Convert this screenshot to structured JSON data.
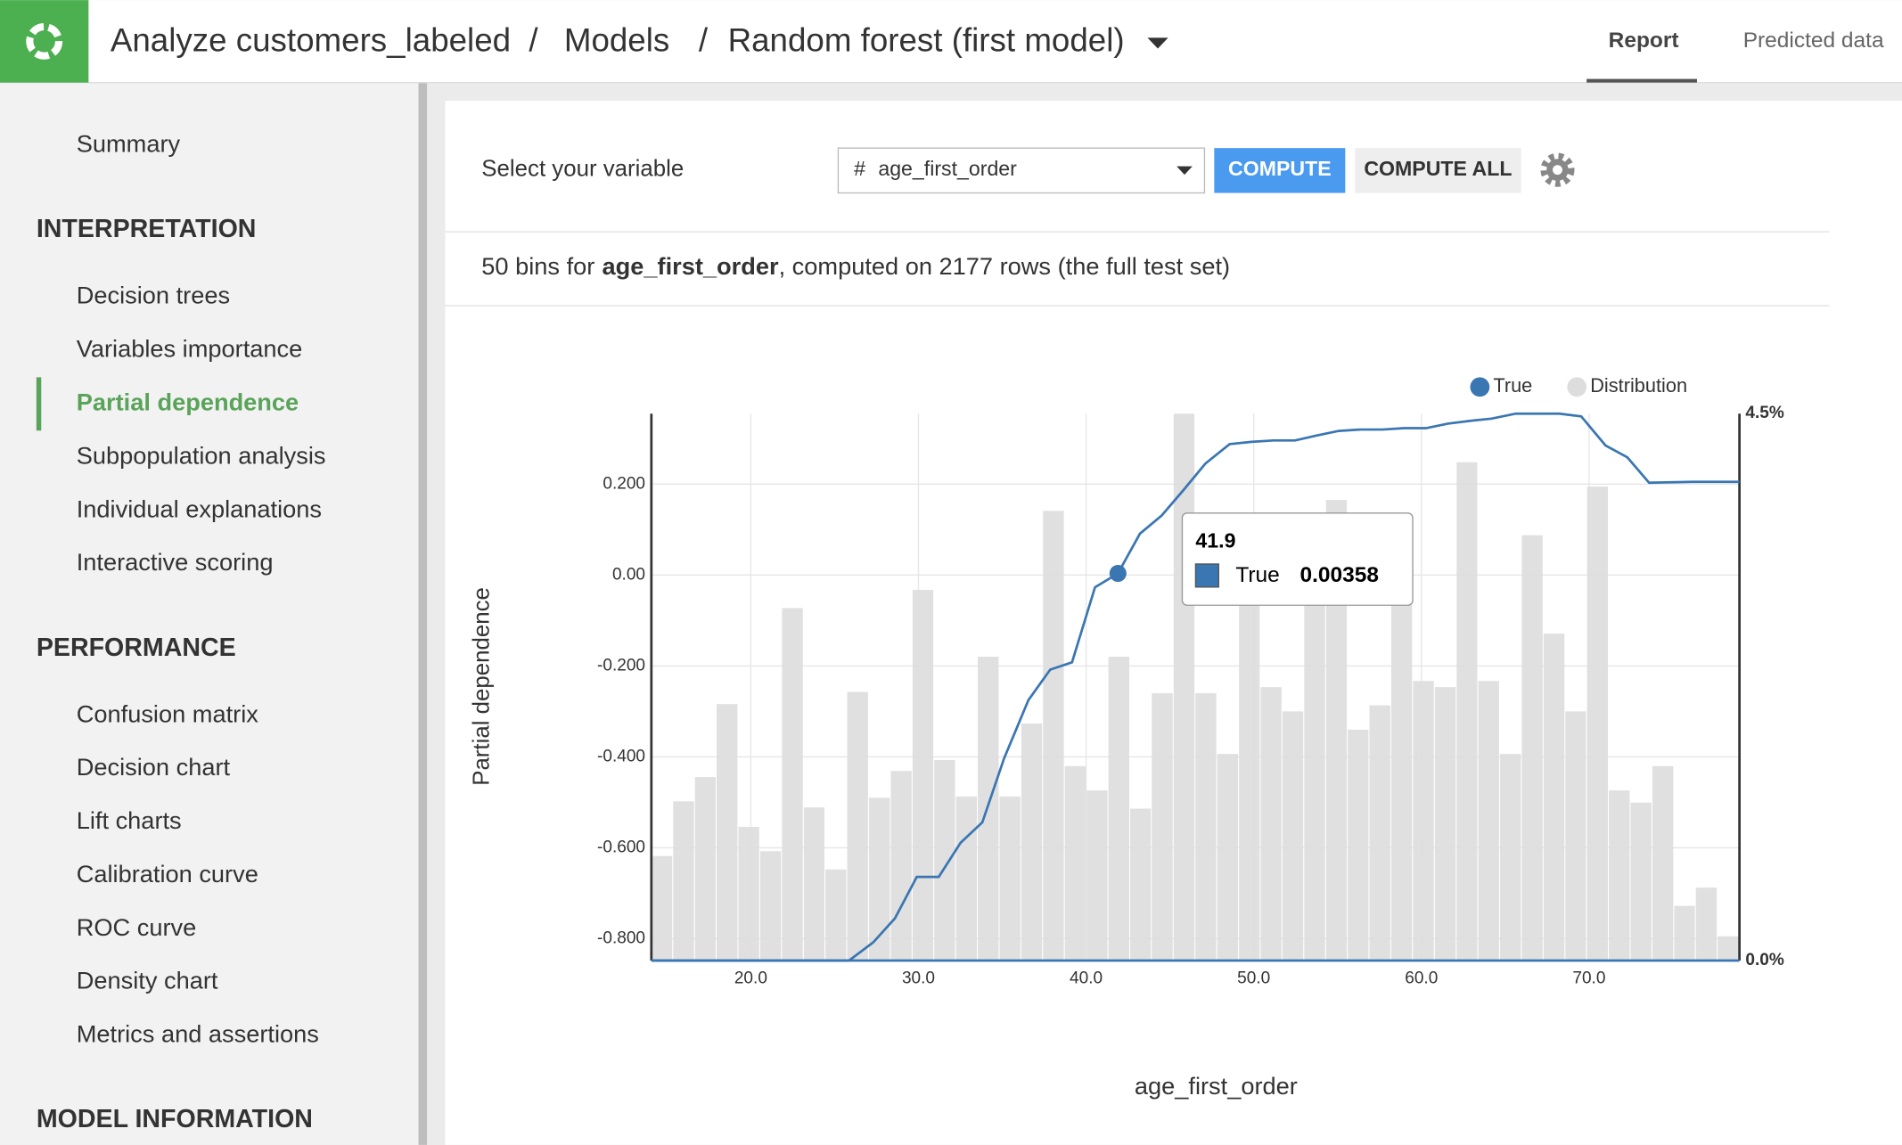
{
  "header": {
    "breadcrumb": [
      "Analyze customers_labeled",
      "Models",
      "Random forest (first model)"
    ],
    "separator": "/",
    "tabs": [
      {
        "label": "Report",
        "active": true
      },
      {
        "label": "Predicted data"
      }
    ]
  },
  "sidebar": {
    "top_item": "Summary",
    "sections": [
      {
        "title": "INTERPRETATION",
        "items": [
          {
            "label": "Decision trees"
          },
          {
            "label": "Variables importance"
          },
          {
            "label": "Partial dependence",
            "active": true
          },
          {
            "label": "Subpopulation analysis"
          },
          {
            "label": "Individual explanations"
          },
          {
            "label": "Interactive scoring"
          }
        ]
      },
      {
        "title": "PERFORMANCE",
        "items": [
          {
            "label": "Confusion matrix"
          },
          {
            "label": "Decision chart"
          },
          {
            "label": "Lift charts"
          },
          {
            "label": "Calibration curve"
          },
          {
            "label": "ROC curve"
          },
          {
            "label": "Density chart"
          },
          {
            "label": "Metrics and assertions"
          }
        ]
      },
      {
        "title": "MODEL INFORMATION"
      }
    ]
  },
  "controls": {
    "select_label": "Select your variable",
    "variable_type": "#",
    "variable": "age_first_order",
    "compute": "COMPUTE",
    "compute_all": "COMPUTE ALL"
  },
  "info": {
    "prefix": "50 bins for",
    "variable": "age_first_order",
    "suffix": ", computed on 2177 rows (the full test set)"
  },
  "chart_data": {
    "type": "line",
    "x_label": "age_first_order",
    "y_label": "Partial dependence",
    "legend": "top-right",
    "grid": true,
    "xlim": [
      14.07,
      78.97
    ],
    "ylim": [
      -0.848,
      0.355
    ],
    "y2lim": [
      0,
      4.5
    ],
    "xticks": [
      {
        "value": 20,
        "label": "20.0"
      },
      {
        "value": 30,
        "label": "30.0"
      },
      {
        "value": 40,
        "label": "40.0"
      },
      {
        "value": 50,
        "label": "50.0"
      },
      {
        "value": 60,
        "label": "60.0"
      },
      {
        "value": 70,
        "label": "70.0"
      }
    ],
    "yticks": [
      {
        "value": 0.2,
        "label": "0.200"
      },
      {
        "value": 0,
        "label": "0.00"
      },
      {
        "value": -0.2,
        "label": "-0.200"
      },
      {
        "value": -0.4,
        "label": "-0.400"
      },
      {
        "value": -0.6,
        "label": "-0.600"
      },
      {
        "value": -0.8,
        "label": "-0.800"
      }
    ],
    "y2ticks": [
      {
        "value": 4.5,
        "label": "4.5%"
      },
      {
        "value": 0,
        "label": "0.0%"
      }
    ],
    "series": [
      {
        "name": "True",
        "color": "#3a76b2",
        "x": [
          14.07,
          25.86,
          27.3,
          28.6,
          29.9,
          31.21,
          32.51,
          33.81,
          35.11,
          36.56,
          37.86,
          39.16,
          40.53,
          41.9,
          43.21,
          44.51,
          45.81,
          47.11,
          48.56,
          49.86,
          51.16,
          52.46,
          53.77,
          55.07,
          56.37,
          57.67,
          58.97,
          60.27,
          61.58,
          62.88,
          64.18,
          65.63,
          66.93,
          68.23,
          69.53,
          70.98,
          72.28,
          73.58,
          76.18,
          78.97
        ],
        "values": [
          -0.848,
          -0.848,
          -0.808,
          -0.755,
          -0.664,
          -0.664,
          -0.589,
          -0.544,
          -0.403,
          -0.275,
          -0.208,
          -0.192,
          -0.027,
          0.00358,
          0.091,
          0.131,
          0.187,
          0.245,
          0.288,
          0.293,
          0.296,
          0.296,
          0.307,
          0.317,
          0.32,
          0.32,
          0.323,
          0.323,
          0.333,
          0.339,
          0.344,
          0.355,
          0.355,
          0.355,
          0.349,
          0.285,
          0.259,
          0.203,
          0.205,
          0.205
        ]
      }
    ],
    "histogram": {
      "name": "Distribution",
      "color": "#dddddd",
      "axis": "y2",
      "bins": [
        14.07,
        15.37,
        16.67,
        17.96,
        19.26,
        20.56,
        21.86,
        23.16,
        24.45,
        25.75,
        27.05,
        28.35,
        29.65,
        30.94,
        32.24,
        33.54,
        34.84,
        36.14,
        37.43,
        38.73,
        40.03,
        41.33,
        42.63,
        43.92,
        45.22,
        46.52,
        47.82,
        49.12,
        50.41,
        51.71,
        53.01,
        54.31,
        55.61,
        56.9,
        58.2,
        59.5,
        60.8,
        62.1,
        63.39,
        64.69,
        65.99,
        67.29,
        68.59,
        69.88,
        71.18,
        72.48,
        73.78,
        75.08,
        76.37,
        77.67,
        78.97
      ],
      "values": [
        0.86,
        1.31,
        1.51,
        2.11,
        1.1,
        0.9,
        2.9,
        1.26,
        0.75,
        2.21,
        1.34,
        1.56,
        3.05,
        1.65,
        1.35,
        2.5,
        1.35,
        1.95,
        3.7,
        1.6,
        1.4,
        2.5,
        1.25,
        2.2,
        4.5,
        2.2,
        1.7,
        3.3,
        2.25,
        2.05,
        3.09,
        3.79,
        1.9,
        2.1,
        3.04,
        2.3,
        2.25,
        4.1,
        2.3,
        1.7,
        3.5,
        2.69,
        2.05,
        3.9,
        1.4,
        1.3,
        1.6,
        0.45,
        0.6,
        0.2
      ]
    },
    "tooltip": {
      "x": 41.9,
      "series": "True",
      "value": 0.00358
    }
  }
}
